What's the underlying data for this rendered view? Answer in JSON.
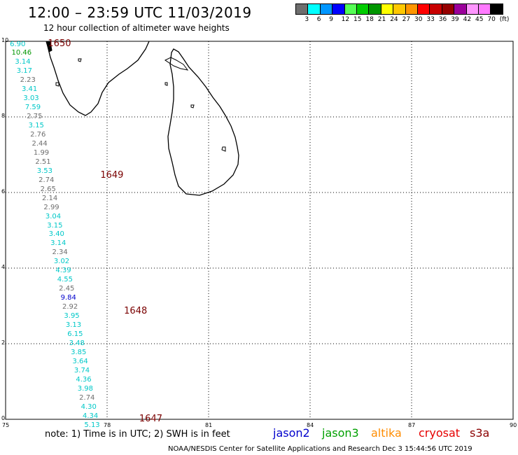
{
  "title": "12:00 – 23:59 UTC 11/03/2019",
  "subtitle": "12 hour collection of altimeter wave heights",
  "legend": {
    "colors": [
      "#6e6e6e",
      "#00ffff",
      "#0096ff",
      "#0000ff",
      "#55ff55",
      "#00cc00",
      "#009600",
      "#ffff00",
      "#ffc800",
      "#ff9600",
      "#ff0000",
      "#c80000",
      "#960000",
      "#9b009b",
      "#ff96ff",
      "#ff7aff",
      "#000000"
    ],
    "labels": [
      "3",
      "6",
      "9",
      "12",
      "15",
      "18",
      "21",
      "24",
      "27",
      "30",
      "33",
      "36",
      "39",
      "42",
      "45",
      "70",
      "(ft)"
    ]
  },
  "axes": {
    "x_ticks": [
      "75",
      "78",
      "81",
      "84",
      "87",
      "90"
    ],
    "y_ticks": [
      "0",
      "2",
      "4",
      "6",
      "8",
      "10"
    ]
  },
  "note": "note:  1) Time is in UTC;  2) SWH is in feet",
  "satellites": [
    {
      "name": "jason2",
      "color": "#0000cc"
    },
    {
      "name": "jason3",
      "color": "#00a000"
    },
    {
      "name": "altika",
      "color": "#ff8c00"
    },
    {
      "name": "cryosat",
      "color": "#e60000"
    },
    {
      "name": "s3a",
      "color": "#8b0000"
    }
  ],
  "credit": "NOAA/NESDIS Center for Satellite Applications and Research     Dec  3 15:44:56 UTC 2019",
  "pass_labels": [
    {
      "text": "1650",
      "lon": 76.25,
      "lat": 9.92
    },
    {
      "text": "1649",
      "lon": 77.8,
      "lat": 6.45
    },
    {
      "text": "1648",
      "lon": 78.5,
      "lat": 2.85
    },
    {
      "text": "1647",
      "lon": 78.95,
      "lat": 0.0
    }
  ],
  "wave_heights": [
    {
      "value": "6.90",
      "lon": 75.25,
      "lat": 9.9,
      "color": "#00c8c8"
    },
    {
      "value": "10.46",
      "lon": 75.3,
      "lat": 9.68,
      "color": "#009600"
    },
    {
      "value": "3.14",
      "lon": 75.4,
      "lat": 9.44,
      "color": "#00c8c8"
    },
    {
      "value": "3.17",
      "lon": 75.45,
      "lat": 9.2,
      "color": "#00c8c8"
    },
    {
      "value": "2.23",
      "lon": 75.55,
      "lat": 8.96,
      "color": "#6e6e6e"
    },
    {
      "value": "3.41",
      "lon": 75.6,
      "lat": 8.72,
      "color": "#00c8c8"
    },
    {
      "value": "3.03",
      "lon": 75.65,
      "lat": 8.48,
      "color": "#00c8c8"
    },
    {
      "value": "7.59",
      "lon": 75.7,
      "lat": 8.24,
      "color": "#00c8c8"
    },
    {
      "value": "2.75",
      "lon": 75.75,
      "lat": 8.0,
      "color": "#6e6e6e"
    },
    {
      "value": "3.15",
      "lon": 75.8,
      "lat": 7.76,
      "color": "#00c8c8"
    },
    {
      "value": "2.76",
      "lon": 75.85,
      "lat": 7.52,
      "color": "#6e6e6e"
    },
    {
      "value": "2.44",
      "lon": 75.9,
      "lat": 7.28,
      "color": "#6e6e6e"
    },
    {
      "value": "1.99",
      "lon": 75.95,
      "lat": 7.04,
      "color": "#6e6e6e"
    },
    {
      "value": "2.51",
      "lon": 76.0,
      "lat": 6.8,
      "color": "#6e6e6e"
    },
    {
      "value": "3.53",
      "lon": 76.05,
      "lat": 6.56,
      "color": "#00c8c8"
    },
    {
      "value": "2.74",
      "lon": 76.1,
      "lat": 6.32,
      "color": "#6e6e6e"
    },
    {
      "value": "2.65",
      "lon": 76.15,
      "lat": 6.08,
      "color": "#6e6e6e"
    },
    {
      "value": "2.14",
      "lon": 76.2,
      "lat": 5.84,
      "color": "#6e6e6e"
    },
    {
      "value": "2.99",
      "lon": 76.25,
      "lat": 5.6,
      "color": "#6e6e6e"
    },
    {
      "value": "3.04",
      "lon": 76.3,
      "lat": 5.36,
      "color": "#00c8c8"
    },
    {
      "value": "3.15",
      "lon": 76.35,
      "lat": 5.12,
      "color": "#00c8c8"
    },
    {
      "value": "3.40",
      "lon": 76.4,
      "lat": 4.88,
      "color": "#00c8c8"
    },
    {
      "value": "3.14",
      "lon": 76.45,
      "lat": 4.64,
      "color": "#00c8c8"
    },
    {
      "value": "2.34",
      "lon": 76.5,
      "lat": 4.4,
      "color": "#6e6e6e"
    },
    {
      "value": "3.02",
      "lon": 76.55,
      "lat": 4.16,
      "color": "#00c8c8"
    },
    {
      "value": "4.39",
      "lon": 76.6,
      "lat": 3.92,
      "color": "#00c8c8"
    },
    {
      "value": "4.55",
      "lon": 76.65,
      "lat": 3.68,
      "color": "#00c8c8"
    },
    {
      "value": "2.45",
      "lon": 76.7,
      "lat": 3.44,
      "color": "#6e6e6e"
    },
    {
      "value": "9.84",
      "lon": 76.75,
      "lat": 3.2,
      "color": "#0000cc"
    },
    {
      "value": "2.92",
      "lon": 76.8,
      "lat": 2.96,
      "color": "#6e6e6e"
    },
    {
      "value": "3.95",
      "lon": 76.85,
      "lat": 2.72,
      "color": "#00c8c8"
    },
    {
      "value": "3.13",
      "lon": 76.9,
      "lat": 2.48,
      "color": "#00c8c8"
    },
    {
      "value": "6.15",
      "lon": 76.95,
      "lat": 2.24,
      "color": "#00c8c8"
    },
    {
      "value": "3.48",
      "lon": 77.0,
      "lat": 2.0,
      "color": "#00c8c8"
    },
    {
      "value": "3.85",
      "lon": 77.05,
      "lat": 1.76,
      "color": "#00c8c8"
    },
    {
      "value": "3.64",
      "lon": 77.1,
      "lat": 1.52,
      "color": "#00c8c8"
    },
    {
      "value": "3.74",
      "lon": 77.15,
      "lat": 1.28,
      "color": "#00c8c8"
    },
    {
      "value": "4.36",
      "lon": 77.2,
      "lat": 1.04,
      "color": "#00c8c8"
    },
    {
      "value": "3.98",
      "lon": 77.25,
      "lat": 0.8,
      "color": "#00c8c8"
    },
    {
      "value": "2.74",
      "lon": 77.3,
      "lat": 0.56,
      "color": "#6e6e6e"
    },
    {
      "value": "4.30",
      "lon": 77.35,
      "lat": 0.32,
      "color": "#00c8c8"
    },
    {
      "value": "4.34",
      "lon": 77.4,
      "lat": 0.08,
      "color": "#00c8c8"
    },
    {
      "value": "5.13",
      "lon": 77.45,
      "lat": -0.16,
      "color": "#00c8c8"
    }
  ]
}
